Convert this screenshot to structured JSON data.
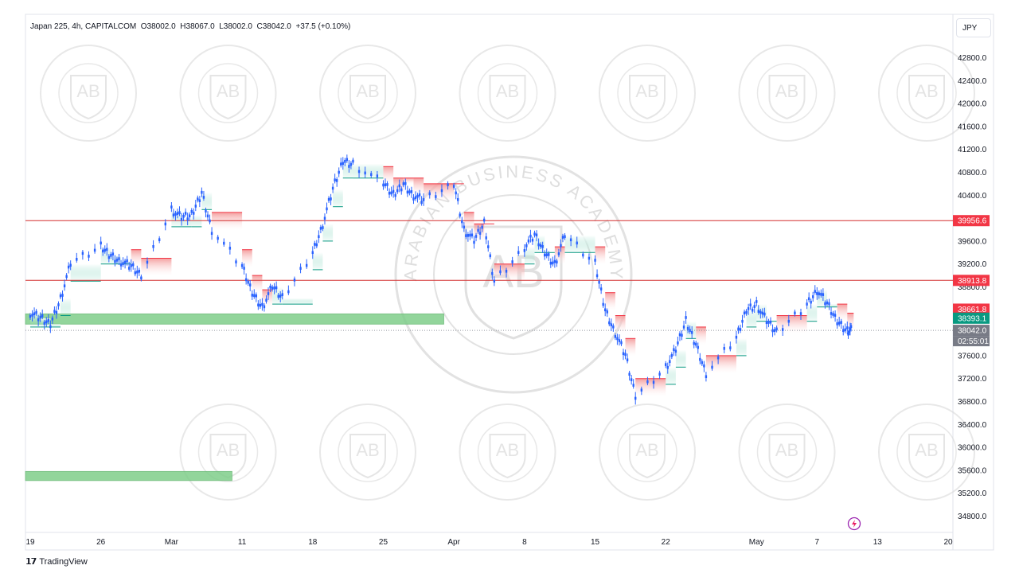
{
  "header": {
    "symbol": "Japan 225, 4h, CAPITALCOM",
    "open": "O38002.0",
    "high": "H38067.0",
    "low": "L38002.0",
    "close": "C38042.0",
    "change": "+37.5 (+0.10%)"
  },
  "currency": "JPY",
  "brand": "TradingView",
  "watermark": {
    "text": "ARABIAN BUSINESS ACADEMY",
    "initials": "AB"
  },
  "price_labels": [
    {
      "value": "39956.6",
      "color": "#f23645"
    },
    {
      "value": "38913.8",
      "color": "#f23645"
    },
    {
      "value": "38661.8",
      "color": "#f23645"
    },
    {
      "value": "38393.1",
      "color": "#089981"
    },
    {
      "value": "38042.0",
      "color": "#787b86"
    }
  ],
  "countdown": "02:55:01",
  "colors": {
    "up": "#2962ff",
    "down": "#2962ff",
    "resistance_line": "#d32f2f",
    "supply_fill": "#f8bcbc",
    "demand_fill": "#b2ead9",
    "zone_green": "#7fce8a"
  },
  "chart_data": {
    "type": "line",
    "title": "Japan 225, 4h, CAPITALCOM",
    "xlabel": "",
    "ylabel": "",
    "ylim": [
      34600,
      43000
    ],
    "y_ticks": [
      34800,
      35200,
      35600,
      36000,
      36400,
      36800,
      37200,
      37600,
      38000,
      38400,
      38800,
      39200,
      39600,
      40000,
      40400,
      40800,
      41200,
      41600,
      42000,
      42400,
      42800
    ],
    "y_tick_labels": [
      "34800.0",
      "35200.0",
      "35600.0",
      "36000.0",
      "36400.0",
      "36800.0",
      "37200.0",
      "37600.0",
      "38000.0",
      "38400.0",
      "38800.0",
      "39200.0",
      "39600.0",
      "40000.0",
      "40400.0",
      "40800.0",
      "41200.0",
      "41600.0",
      "42000.0",
      "42400.0",
      "42800.0"
    ],
    "x_tick_labels": [
      "19",
      "26",
      "Mar",
      "11",
      "18",
      "25",
      "Apr",
      "8",
      "15",
      "22",
      "May",
      "7",
      "13",
      "20"
    ],
    "x_tick_dates": [
      "2024-02-19",
      "2024-02-26",
      "2024-03-04",
      "2024-03-11",
      "2024-03-18",
      "2024-03-25",
      "2024-04-01",
      "2024-04-08",
      "2024-04-15",
      "2024-04-22",
      "2024-05-01",
      "2024-05-07",
      "2024-05-13",
      "2024-05-20"
    ],
    "series": [
      {
        "values": [
          [
            "2024-02-19",
            38350
          ],
          [
            "2024-02-20",
            38250
          ],
          [
            "2024-02-21",
            38150
          ],
          [
            "2024-02-22",
            38600
          ],
          [
            "2024-02-23",
            39200
          ],
          [
            "2024-02-26",
            39500
          ],
          [
            "2024-02-27",
            39350
          ],
          [
            "2024-02-28",
            39250
          ],
          [
            "2024-02-29",
            39150
          ],
          [
            "2024-03-01",
            39000
          ],
          [
            "2024-03-04",
            40150
          ],
          [
            "2024-03-05",
            40000
          ],
          [
            "2024-03-06",
            40050
          ],
          [
            "2024-03-07",
            40450
          ],
          [
            "2024-03-08",
            39800
          ],
          [
            "2024-03-11",
            39150
          ],
          [
            "2024-03-12",
            38700
          ],
          [
            "2024-03-13",
            38450
          ],
          [
            "2024-03-14",
            38800
          ],
          [
            "2024-03-15",
            38600
          ],
          [
            "2024-03-18",
            39400
          ],
          [
            "2024-03-19",
            39900
          ],
          [
            "2024-03-20",
            40500
          ],
          [
            "2024-03-21",
            41000
          ],
          [
            "2024-03-22",
            40950
          ],
          [
            "2024-03-25",
            40600
          ],
          [
            "2024-03-26",
            40400
          ],
          [
            "2024-03-27",
            40600
          ],
          [
            "2024-03-28",
            40400
          ],
          [
            "2024-03-29",
            40300
          ],
          [
            "2024-04-01",
            40600
          ],
          [
            "2024-04-02",
            39800
          ],
          [
            "2024-04-03",
            39600
          ],
          [
            "2024-04-04",
            39900
          ],
          [
            "2024-04-05",
            38900
          ],
          [
            "2024-04-08",
            39500
          ],
          [
            "2024-04-09",
            39700
          ],
          [
            "2024-04-10",
            39400
          ],
          [
            "2024-04-11",
            39200
          ],
          [
            "2024-04-12",
            39700
          ],
          [
            "2024-04-15",
            39200
          ],
          [
            "2024-04-16",
            38400
          ],
          [
            "2024-04-17",
            38000
          ],
          [
            "2024-04-18",
            37600
          ],
          [
            "2024-04-19",
            36900
          ],
          [
            "2024-04-22",
            37400
          ],
          [
            "2024-04-23",
            37700
          ],
          [
            "2024-04-24",
            38200
          ],
          [
            "2024-04-25",
            37800
          ],
          [
            "2024-04-26",
            37300
          ],
          [
            "2024-04-29",
            37900
          ],
          [
            "2024-04-30",
            38400
          ],
          [
            "2024-05-01",
            38500
          ],
          [
            "2024-05-02",
            38200
          ],
          [
            "2024-05-03",
            38000
          ],
          [
            "2024-05-06",
            38500
          ],
          [
            "2024-05-07",
            38750
          ],
          [
            "2024-05-08",
            38500
          ],
          [
            "2024-05-09",
            38200
          ],
          [
            "2024-05-10",
            38042
          ]
        ]
      }
    ],
    "horizontal_lines": [
      39956.6,
      38913.8
    ],
    "zones": [
      {
        "from": "2024-02-19",
        "to": "2024-03-31",
        "low": 38150,
        "high": 38330
      },
      {
        "from": "2024-02-19",
        "to": "2024-03-10",
        "low": 35420,
        "high": 35580
      }
    ],
    "last_price": 38042.0,
    "grid": false,
    "legend": "top-left"
  }
}
